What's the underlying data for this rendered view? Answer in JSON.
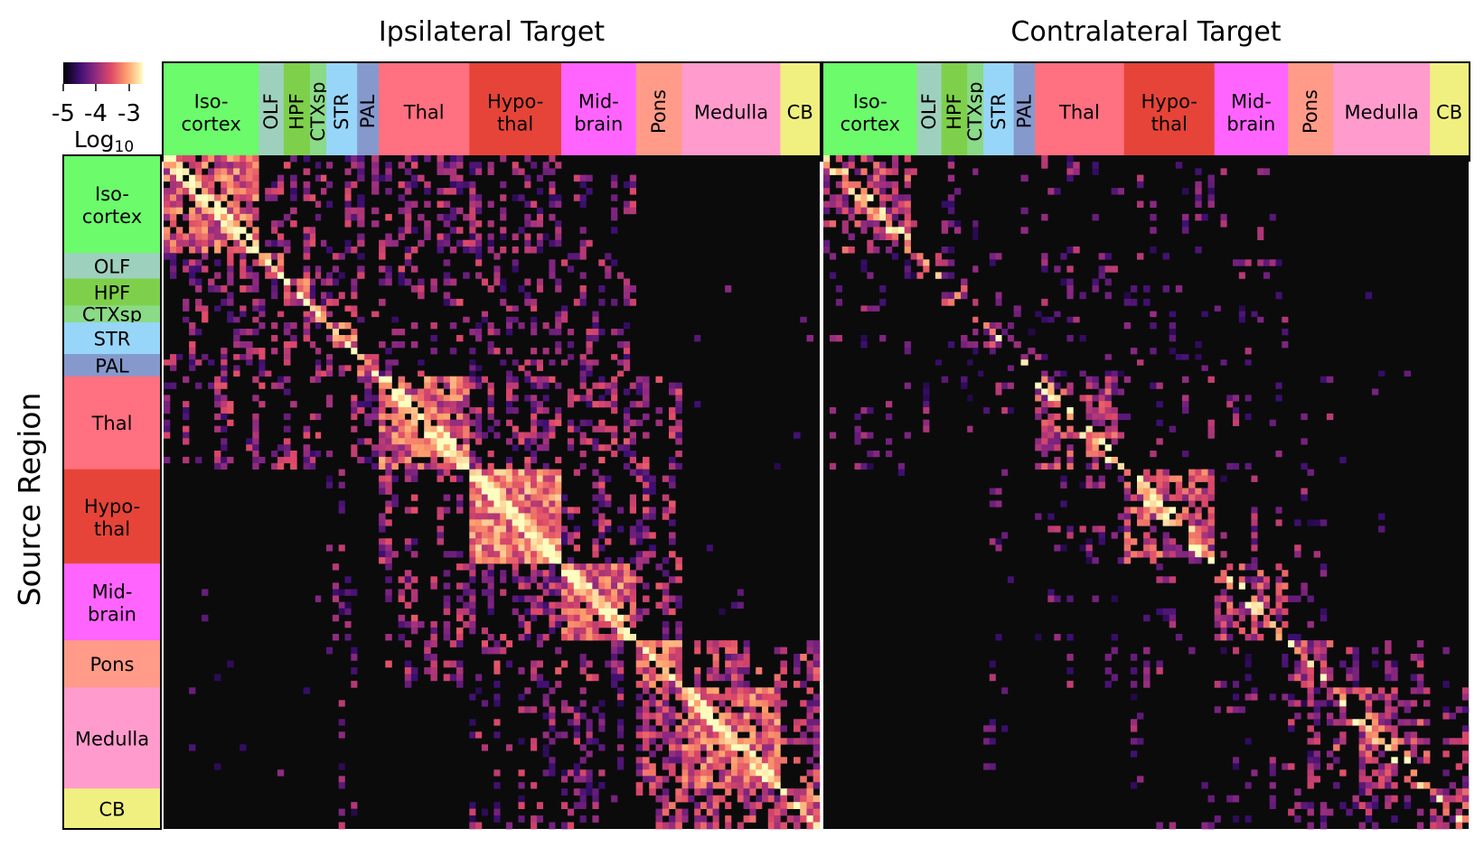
{
  "chart_data": {
    "type": "heatmap",
    "ylabel": "Source Region",
    "colorbar": {
      "ticks": [
        "-5",
        "-4",
        "-3"
      ],
      "label": "Log",
      "label_subscript": "10",
      "colormap": [
        "#000004",
        "#3b0f70",
        "#8c2981",
        "#de4968",
        "#fe9f6d",
        "#fcfdbf"
      ]
    },
    "panels": [
      {
        "title": "Ipsilateral Target",
        "side": "ipsi"
      },
      {
        "title": "Contralateral Target",
        "side": "contra"
      }
    ],
    "regions": [
      {
        "line1": "Iso-",
        "line2": "cortex",
        "label": "Iso-cortex",
        "color": "#6bfb6b",
        "share": 0.145,
        "vertical": false
      },
      {
        "line1": "OLF",
        "line2": "",
        "label": "OLF",
        "color": "#9ed1bd",
        "share": 0.038,
        "vertical": true
      },
      {
        "line1": "HPF",
        "line2": "",
        "label": "HPF",
        "color": "#7ed04b",
        "share": 0.04,
        "vertical": true
      },
      {
        "line1": "CTXsp",
        "line2": "",
        "label": "CTXsp",
        "color": "#8ada87",
        "share": 0.025,
        "vertical": true
      },
      {
        "line1": "STR",
        "line2": "",
        "label": "STR",
        "color": "#98d6f9",
        "share": 0.047,
        "vertical": true
      },
      {
        "line1": "PAL",
        "line2": "",
        "label": "PAL",
        "color": "#8599cc",
        "share": 0.033,
        "vertical": true
      },
      {
        "line1": "Thal",
        "line2": "",
        "label": "Thal",
        "color": "#ff7080",
        "share": 0.138,
        "vertical": false
      },
      {
        "line1": "Hypo-",
        "line2": "thal",
        "label": "Hypo-thal",
        "color": "#e64438",
        "share": 0.14,
        "vertical": false
      },
      {
        "line1": "Mid-",
        "line2": "brain",
        "label": "Mid-brain",
        "color": "#ff64ff",
        "share": 0.114,
        "vertical": false
      },
      {
        "line1": "Pons",
        "line2": "",
        "label": "Pons",
        "color": "#ff9b88",
        "share": 0.07,
        "vertical": true
      },
      {
        "line1": "Medulla",
        "line2": "",
        "label": "Medulla",
        "color": "#ff9bcd",
        "share": 0.15,
        "vertical": false
      },
      {
        "line1": "CB",
        "line2": "",
        "label": "CB",
        "color": "#f0f080",
        "share": 0.06,
        "vertical": false
      }
    ]
  }
}
